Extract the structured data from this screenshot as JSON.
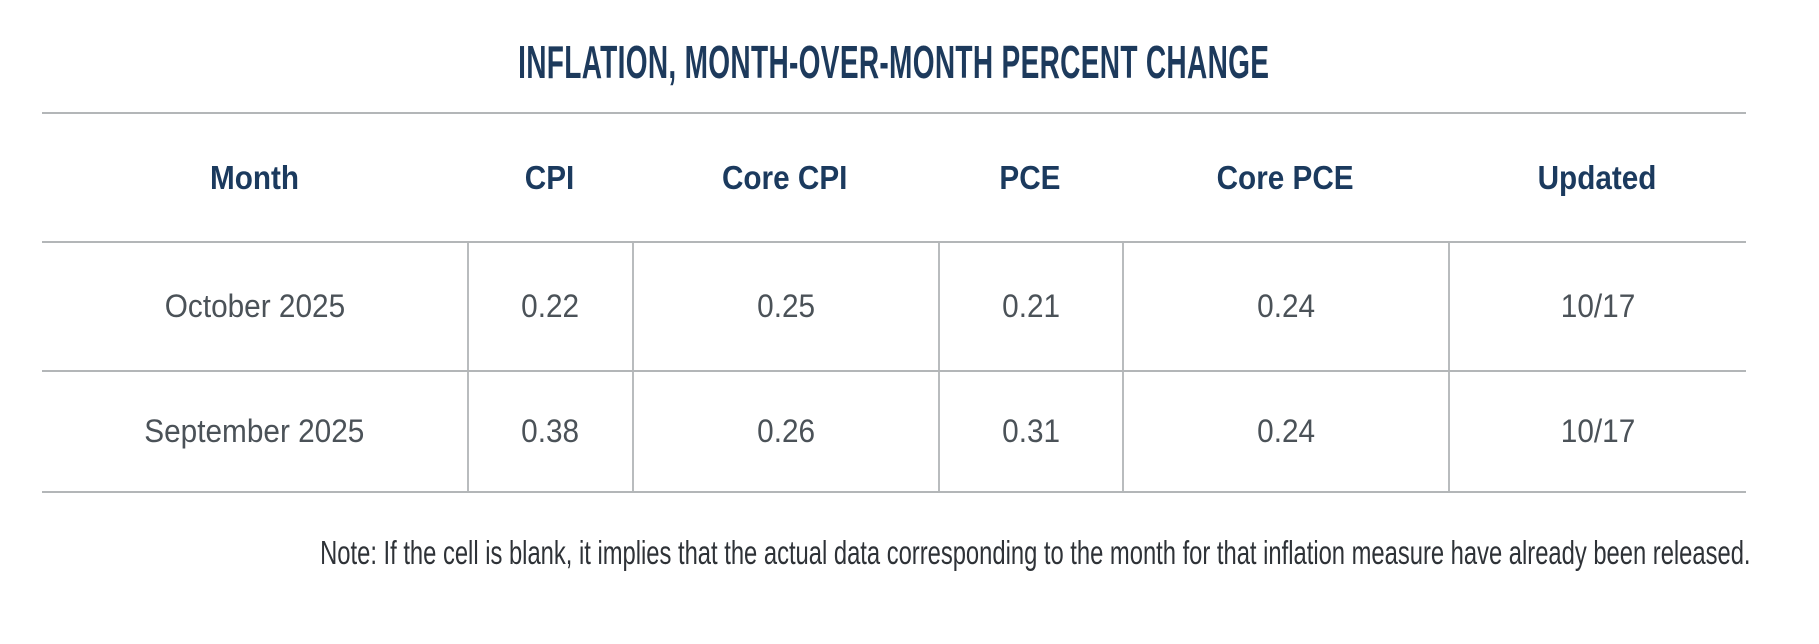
{
  "title": "INFLATION, MONTH-OVER-MONTH PERCENT CHANGE",
  "table": {
    "columns": [
      "Month",
      "CPI",
      "Core CPI",
      "PCE",
      "Core PCE",
      "Updated"
    ],
    "rows": [
      [
        "October 2025",
        "0.22",
        "0.25",
        "0.21",
        "0.24",
        "10/17"
      ],
      [
        "September 2025",
        "0.38",
        "0.26",
        "0.31",
        "0.24",
        "10/17"
      ]
    ]
  },
  "note": "Note: If the cell is blank, it implies that the actual data corresponding to the month for that inflation measure have already been released.",
  "colors": {
    "title_navy": "#1d3a5c",
    "header_navy": "#1b3a5e",
    "value_gray": "#4b5258",
    "note_gray": "#2e3237",
    "rule_gray": "#b3b6b8",
    "background": "#ffffff"
  },
  "chart_data": {
    "type": "table",
    "title": "INFLATION, MONTH-OVER-MONTH PERCENT CHANGE",
    "columns": [
      "Month",
      "CPI",
      "Core CPI",
      "PCE",
      "Core PCE",
      "Updated"
    ],
    "rows": [
      {
        "month": "October 2025",
        "cpi": 0.22,
        "core_cpi": 0.25,
        "pce": 0.21,
        "core_pce": 0.24,
        "updated": "10/17"
      },
      {
        "month": "September 2025",
        "cpi": 0.38,
        "core_cpi": 0.26,
        "pce": 0.31,
        "core_pce": 0.24,
        "updated": "10/17"
      }
    ],
    "note": "Note: If the cell is blank, it implies that the actual data corresponding to the month for that inflation measure have already been released.",
    "layout": {
      "grid": "horizontal rules for all rows; vertical rules only between data cells",
      "units": "month-over-month percent change"
    }
  }
}
